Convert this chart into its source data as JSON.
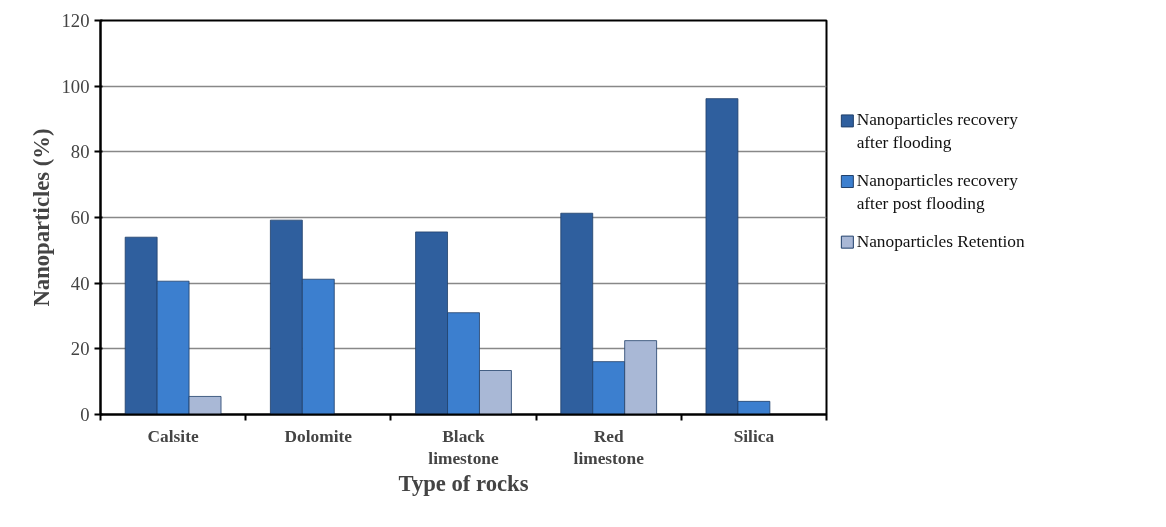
{
  "chart_data": {
    "type": "bar",
    "xlabel": "Type of rocks",
    "ylabel": "Nanoparticles (%)",
    "categories": [
      "Calsite",
      "Dolomite",
      "Black limestone",
      "Red limestone",
      "Silica"
    ],
    "series": [
      {
        "name": "Nanoparticles recovery after flooding",
        "color": "#2f5f9e",
        "values": [
          54.0,
          59.2,
          55.6,
          61.3,
          96.2
        ]
      },
      {
        "name": "Nanoparticles recovery after post flooding",
        "color": "#3c7fcf",
        "values": [
          40.6,
          41.2,
          31.0,
          16.1,
          4.0
        ]
      },
      {
        "name": "Nanoparticles Retention",
        "color": "#a9b8d6",
        "values": [
          5.5,
          null,
          13.4,
          22.5,
          null
        ]
      }
    ],
    "ylim": [
      0,
      120
    ],
    "yticks": [
      0,
      20,
      40,
      60,
      80,
      100,
      120
    ],
    "grid": "y",
    "legend": "right"
  }
}
